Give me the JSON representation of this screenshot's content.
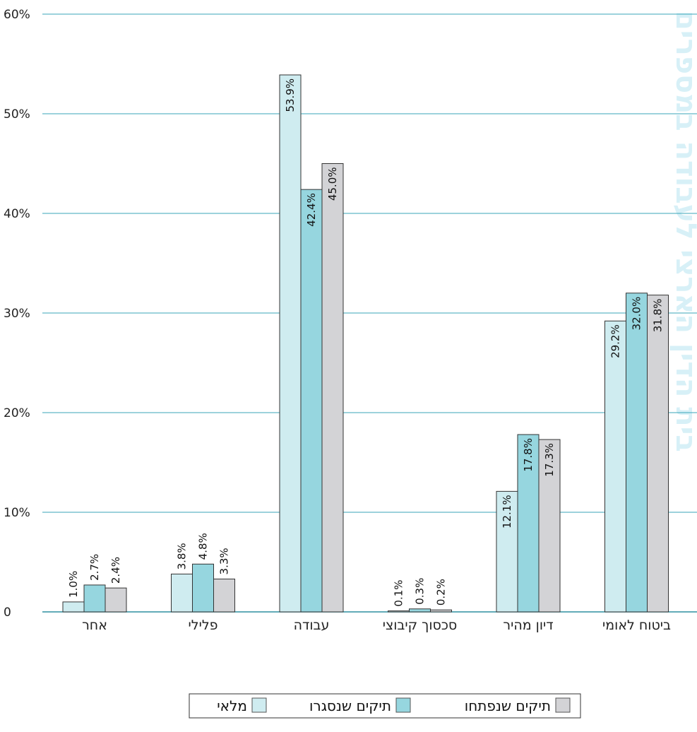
{
  "chart_data": {
    "type": "bar",
    "categories": [
      "אחר",
      "פלילי",
      "עבודה",
      "סכסוך קיבוצי",
      "דיון מהיר",
      "ביטוח לאומי"
    ],
    "series": [
      {
        "name": "מלאי",
        "color": "#cfecf0",
        "values": [
          1.0,
          3.8,
          53.9,
          0.1,
          12.1,
          29.2
        ],
        "labels": [
          "1.0%",
          "3.8%",
          "53.9%",
          "0.1%",
          "12.1%",
          "29.2%"
        ]
      },
      {
        "name": "תיקים שנסגרו",
        "color": "#96d6df",
        "values": [
          2.7,
          4.8,
          42.4,
          0.3,
          17.8,
          32.0
        ],
        "labels": [
          "2.7%",
          "4.8%",
          "42.4%",
          "0.3%",
          "17.8%",
          "32.0%"
        ]
      },
      {
        "name": "תיקים שנפתחו",
        "color": "#d3d3d6",
        "values": [
          2.4,
          3.3,
          45.0,
          0.2,
          17.3,
          31.8
        ],
        "labels": [
          "2.4%",
          "3.3%",
          "45.0%",
          "0.2%",
          "17.3%",
          "31.8%"
        ]
      }
    ],
    "yticks": [
      "0",
      "10%",
      "20%",
      "30%",
      "40%",
      "50%",
      "60%"
    ],
    "ylim": [
      0,
      60
    ],
    "grid": true,
    "grid_color": "#3aa6b8",
    "legend_position": "bottom-center"
  },
  "decor": {
    "side_text": "בית הדין הארצי לעבודה במספרים"
  }
}
